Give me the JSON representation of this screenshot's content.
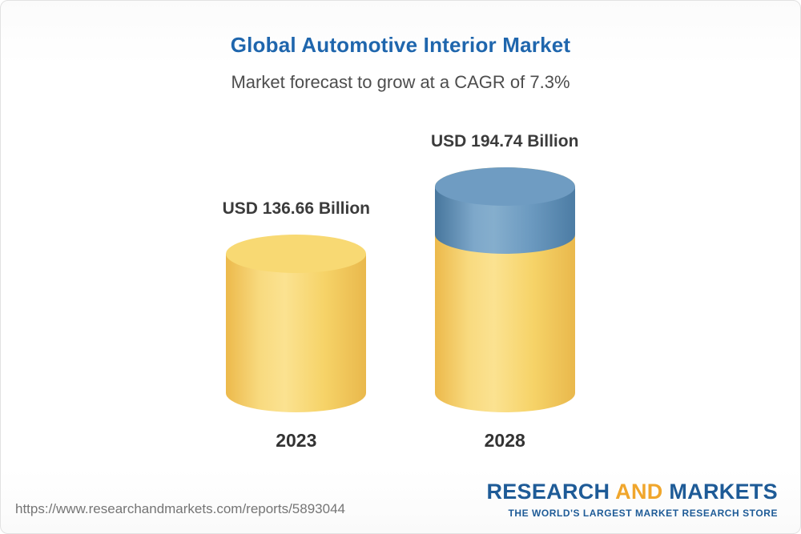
{
  "header": {
    "title": "Global Automotive Interior Market",
    "subtitle": "Market forecast to grow at a CAGR of 7.3%"
  },
  "chart_data": {
    "type": "bar",
    "bar_style": "3d-cylinder",
    "categories": [
      "2023",
      "2028"
    ],
    "values": [
      136.66,
      194.74
    ],
    "value_labels": [
      "USD 136.66 Billion",
      "USD 194.74 Billion"
    ],
    "unit": "USD Billion",
    "cagr_percent": 7.3,
    "title": "Global Automotive Interior Market",
    "subtitle": "Market forecast to grow at a CAGR of 7.3%",
    "legend_position": "none",
    "grid": false,
    "colors": {
      "base_segment": "#f5d068",
      "growth_segment": "#5d8fb5",
      "title_text": "#1f66ad"
    }
  },
  "footer": {
    "url": "https://www.researchandmarkets.com/reports/5893044",
    "logo": {
      "word1": "RESEARCH",
      "word2": "AND",
      "word3": "MARKETS",
      "tagline": "THE WORLD'S LARGEST MARKET RESEARCH STORE"
    }
  }
}
